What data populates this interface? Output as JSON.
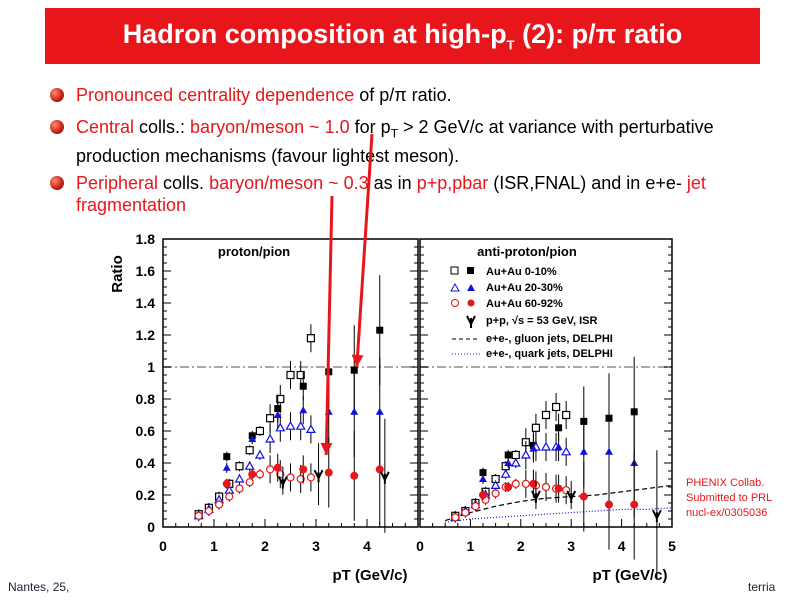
{
  "slide": {
    "title_pre": "Hadron composition at high-p",
    "title_sub": "T",
    "title_post": " (2): p/π ratio",
    "bullets": {
      "b1": {
        "a": "Pronounced centrality dependence",
        "b": " of p/π ratio."
      },
      "b2": {
        "a": "Central",
        "b": " colls.: ",
        "c": "baryon/meson ~ 1.0",
        "d": " for p",
        "e": "T",
        "f": " > 2 GeV/c at variance with perturbative production mechanisms (favour lightest meson)."
      },
      "b3": {
        "a": "Peripheral",
        "b": " colls. ",
        "c": "baryon/meson ~ 0.3",
        "d": "  as in ",
        "e": "p+p,pbar",
        "f": " (ISR,FNAL) and in e+e- ",
        "g": "jet fragmentation"
      }
    },
    "footer_left": "Nantes, 25,",
    "footer_right": "terria",
    "credit": [
      "PHENIX Collab.",
      "Submitted to PRL",
      "nucl-ex/0305036"
    ],
    "colors": {
      "banner": "#e8161b",
      "accent": "#e8161b",
      "blue": "#1010e0"
    }
  },
  "chart_data": [
    {
      "type": "scatter",
      "title": "proton/pion",
      "ylabel": "Ratio",
      "xlabel": "pT (GeV/c)",
      "xlim": [
        0,
        5
      ],
      "ylim": [
        0,
        1.8
      ],
      "xticks": [
        "0",
        "1",
        "2",
        "3",
        "4"
      ],
      "yticks": [
        "0",
        "0.2",
        "0.4",
        "0.6",
        "0.8",
        "1",
        "1.2",
        "1.4",
        "1.6",
        "1.8"
      ],
      "reference_line": 1.0,
      "series": [
        {
          "name": "Au+Au 0-10%",
          "marker": "square",
          "color": "#000000",
          "x": [
            0.7,
            0.9,
            1.1,
            1.3,
            1.5,
            1.7,
            1.9,
            2.1,
            2.3,
            2.5,
            2.7,
            2.9
          ],
          "y": [
            0.08,
            0.12,
            0.19,
            0.27,
            0.38,
            0.48,
            0.6,
            0.68,
            0.8,
            0.95,
            0.95,
            1.18
          ]
        },
        {
          "name": "Au+Au 0-10% (high pT)",
          "marker": "square-filled",
          "color": "#000000",
          "x": [
            1.25,
            1.75,
            2.25,
            2.75,
            3.25,
            3.75,
            4.25
          ],
          "y": [
            0.44,
            0.57,
            0.74,
            0.88,
            0.97,
            0.98,
            1.23
          ]
        },
        {
          "name": "Au+Au 20-30%",
          "marker": "triangle",
          "color": "#1010e0",
          "x": [
            0.7,
            0.9,
            1.1,
            1.3,
            1.5,
            1.7,
            1.9,
            2.1,
            2.3,
            2.5,
            2.7,
            2.9
          ],
          "y": [
            0.07,
            0.11,
            0.17,
            0.23,
            0.3,
            0.38,
            0.45,
            0.55,
            0.62,
            0.63,
            0.63,
            0.61
          ]
        },
        {
          "name": "Au+Au 20-30% (high pT)",
          "marker": "triangle-filled",
          "color": "#1010e0",
          "x": [
            1.25,
            1.75,
            2.25,
            2.75,
            3.25,
            3.75,
            4.25
          ],
          "y": [
            0.37,
            0.55,
            0.7,
            0.73,
            0.72,
            0.72,
            0.72
          ]
        },
        {
          "name": "Au+Au 60-92%",
          "marker": "circle",
          "color": "#e8161b",
          "x": [
            0.7,
            0.9,
            1.1,
            1.3,
            1.5,
            1.7,
            1.9,
            2.1,
            2.3,
            2.5,
            2.7,
            2.9
          ],
          "y": [
            0.07,
            0.1,
            0.14,
            0.19,
            0.24,
            0.28,
            0.33,
            0.36,
            0.33,
            0.31,
            0.3,
            0.31
          ]
        },
        {
          "name": "Au+Au 60-92% (high pT)",
          "marker": "circle-filled",
          "color": "#e8161b",
          "x": [
            1.25,
            1.75,
            2.25,
            2.75,
            3.25,
            3.75,
            4.25
          ],
          "y": [
            0.27,
            0.33,
            0.37,
            0.36,
            0.34,
            0.32,
            0.36
          ]
        },
        {
          "name": "p+p, √s = 53 GeV, ISR",
          "marker": "star",
          "color": "#000000",
          "x": [
            2.35,
            3.05,
            4.35
          ],
          "y": [
            0.29,
            0.33,
            0.32
          ]
        }
      ]
    },
    {
      "type": "scatter",
      "title": "anti-proton/pion",
      "xlabel": "pT (GeV/c)",
      "xlim": [
        0,
        5
      ],
      "ylim": [
        0,
        1.8
      ],
      "xticks": [
        "0",
        "1",
        "2",
        "3",
        "4",
        "5"
      ],
      "reference_line": 1.0,
      "legend": [
        "Au+Au 0-10%",
        "Au+Au 20-30%",
        "Au+Au 60-92%",
        "p+p, √s = 53 GeV, ISR",
        "e+e-, gluon jets, DELPHI",
        "e+e-, quark jets, DELPHI"
      ],
      "series": [
        {
          "name": "Au+Au 0-10%",
          "marker": "square",
          "color": "#000000",
          "x": [
            0.7,
            0.9,
            1.1,
            1.3,
            1.5,
            1.7,
            1.9,
            2.1,
            2.3,
            2.5,
            2.7,
            2.9
          ],
          "y": [
            0.07,
            0.1,
            0.15,
            0.22,
            0.3,
            0.38,
            0.45,
            0.53,
            0.62,
            0.7,
            0.75,
            0.7
          ]
        },
        {
          "name": "Au+Au 0-10% (high pT)",
          "marker": "square-filled",
          "color": "#000000",
          "x": [
            1.25,
            1.75,
            2.25,
            2.75,
            3.25,
            3.75,
            4.25
          ],
          "y": [
            0.34,
            0.45,
            0.51,
            0.62,
            0.66,
            0.68,
            0.72
          ]
        },
        {
          "name": "Au+Au 20-30%",
          "marker": "triangle",
          "color": "#1010e0",
          "x": [
            0.7,
            0.9,
            1.1,
            1.3,
            1.5,
            1.7,
            1.9,
            2.1,
            2.3,
            2.5,
            2.7,
            2.9
          ],
          "y": [
            0.06,
            0.1,
            0.14,
            0.2,
            0.26,
            0.33,
            0.4,
            0.45,
            0.5,
            0.5,
            0.5,
            0.47
          ]
        },
        {
          "name": "Au+Au 20-30% (high pT)",
          "marker": "triangle-filled",
          "color": "#1010e0",
          "x": [
            1.25,
            1.75,
            2.25,
            2.75,
            3.25,
            3.75,
            4.25
          ],
          "y": [
            0.3,
            0.4,
            0.49,
            0.5,
            0.47,
            0.47,
            0.4
          ]
        },
        {
          "name": "Au+Au 60-92%",
          "marker": "circle",
          "color": "#e8161b",
          "x": [
            0.7,
            0.9,
            1.1,
            1.3,
            1.5,
            1.7,
            1.9,
            2.1,
            2.3,
            2.5,
            2.7,
            2.9
          ],
          "y": [
            0.06,
            0.09,
            0.13,
            0.17,
            0.21,
            0.25,
            0.27,
            0.27,
            0.26,
            0.25,
            0.24,
            0.23
          ]
        },
        {
          "name": "Au+Au 60-92% (high pT)",
          "marker": "circle-filled",
          "color": "#e8161b",
          "x": [
            1.25,
            1.75,
            2.25,
            2.75,
            3.25,
            3.75,
            4.25
          ],
          "y": [
            0.2,
            0.25,
            0.27,
            0.24,
            0.19,
            0.14,
            0.14
          ]
        },
        {
          "name": "p+p, √s = 53 GeV, ISR",
          "marker": "star",
          "color": "#000000",
          "x": [
            2.3,
            3.0,
            4.7
          ],
          "y": [
            0.2,
            0.2,
            0.08
          ]
        },
        {
          "name": "e+e-, gluon jets, DELPHI",
          "style": "dashed",
          "color": "#000000",
          "x": [
            0.5,
            1,
            1.5,
            2,
            2.5,
            3,
            3.5,
            4,
            4.5,
            5
          ],
          "y": [
            0.04,
            0.09,
            0.13,
            0.16,
            0.18,
            0.19,
            0.2,
            0.22,
            0.24,
            0.26
          ]
        },
        {
          "name": "e+e-, quark jets, DELPHI",
          "style": "dotted",
          "color": "#1010e0",
          "x": [
            0.5,
            1,
            1.5,
            2,
            2.5,
            3,
            3.5,
            4,
            4.5,
            5
          ],
          "y": [
            0.03,
            0.05,
            0.06,
            0.07,
            0.08,
            0.09,
            0.1,
            0.11,
            0.11,
            0.12
          ]
        }
      ]
    }
  ]
}
